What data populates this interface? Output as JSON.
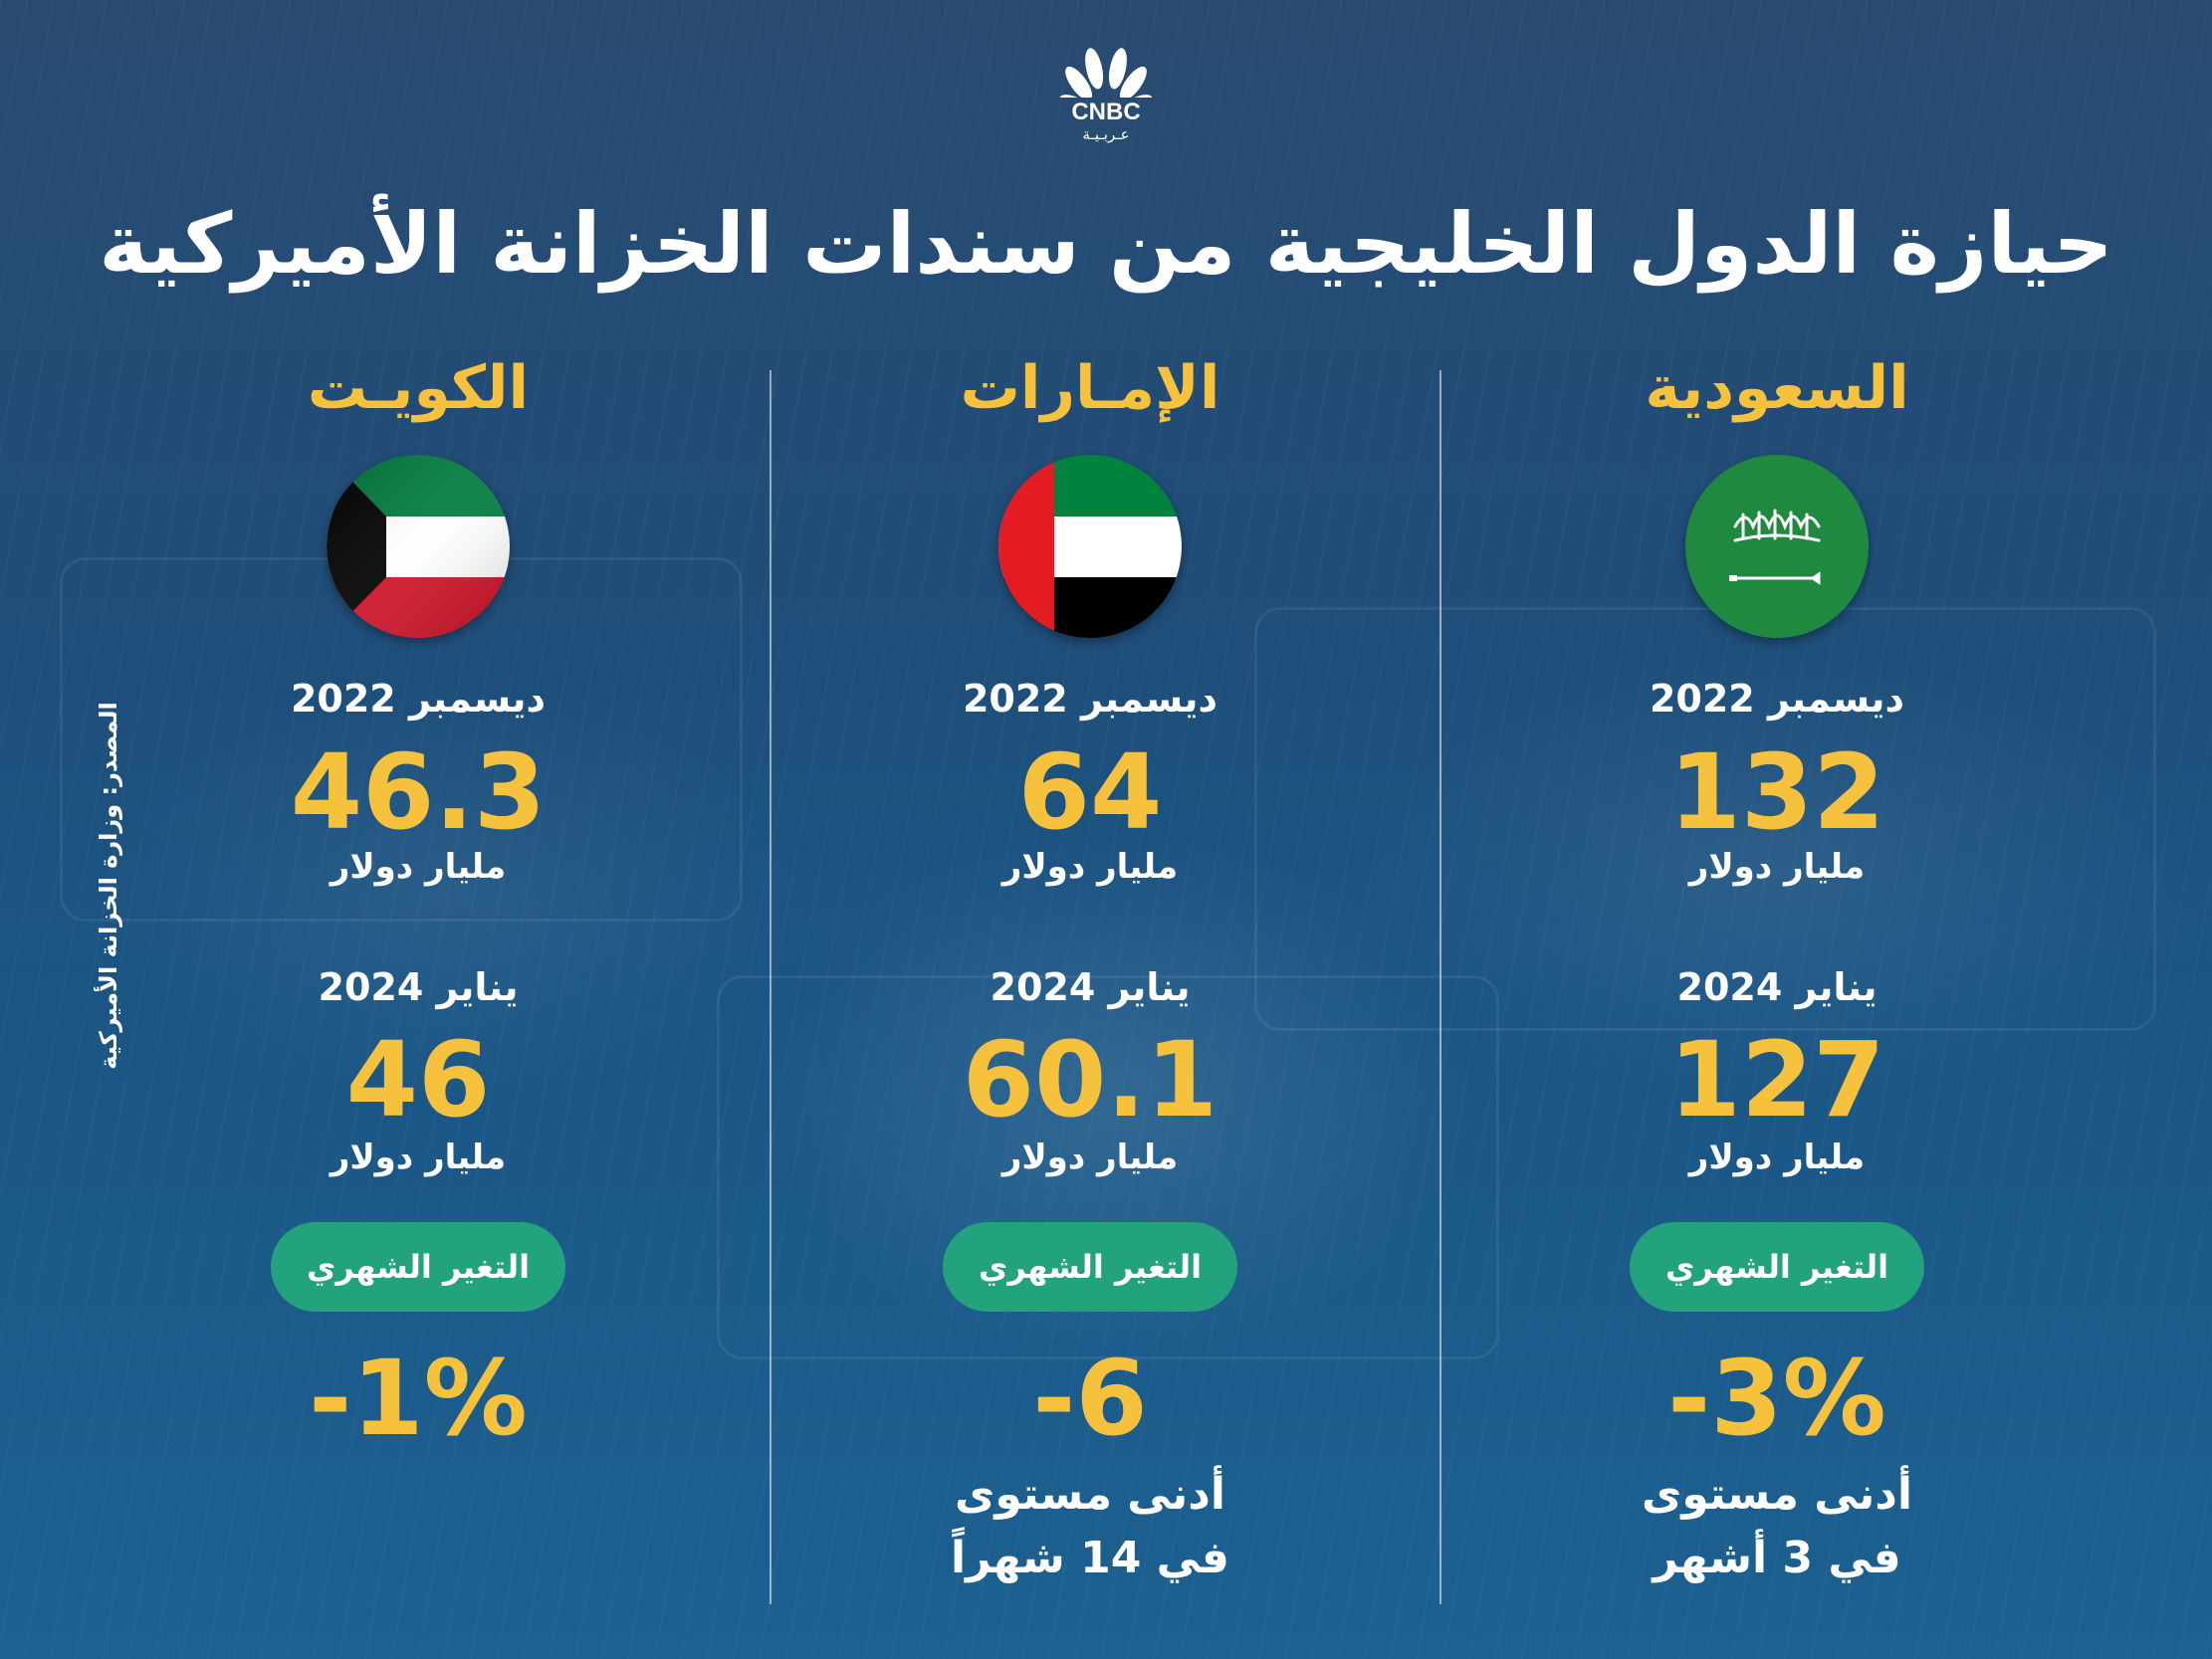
{
  "brand": {
    "logo_text": "CNBC",
    "logo_subtitle": "عـربـيـة"
  },
  "title": "حيازة الدول الخليجية من سندات الخزانة الأميركية",
  "source": "المصدر: وزارة الخزانة الأميركية",
  "colors": {
    "accent": "#f6c23e",
    "pill": "#22a37d",
    "background": "#1f4d78"
  },
  "countries": [
    {
      "name": "السعودية",
      "flag": "saudi-flag-icon",
      "date1": "ديسمبر 2022",
      "value1": "132",
      "unit1": "مليار دولار",
      "date2": "يناير 2024",
      "value2": "127",
      "unit2": "مليار دولار",
      "change_label": "التغير الشهري",
      "change": "-3%",
      "note_line1": "أدنى مستوى",
      "note_line2": "في 3 أشهر"
    },
    {
      "name": "الإمـارات",
      "flag": "uae-flag-icon",
      "date1": "ديسمبر 2022",
      "value1": "64",
      "unit1": "مليار دولار",
      "date2": "يناير 2024",
      "value2": "60.1",
      "unit2": "مليار دولار",
      "change_label": "التغير الشهري",
      "change": "-6",
      "note_line1": "أدنى مستوى",
      "note_line2": "في 14 شهراً"
    },
    {
      "name": "الكويـت",
      "flag": "kuwait-flag-icon",
      "date1": "ديسمبر 2022",
      "value1": "46.3",
      "unit1": "مليار دولار",
      "date2": "يناير 2024",
      "value2": "46",
      "unit2": "مليار دولار",
      "change_label": "التغير الشهري",
      "change": "-1%"
    }
  ]
}
